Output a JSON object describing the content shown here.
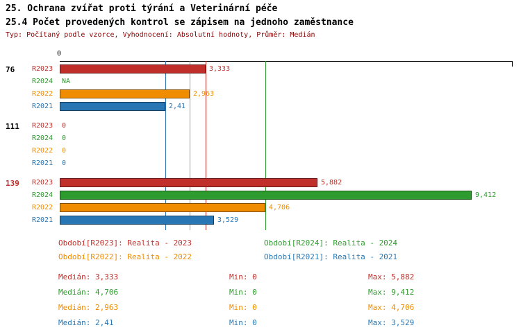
{
  "header": {
    "title1": "25. Ochrana zvířat proti týrání a Veterinární péče",
    "title2": "25.4 Počet provedených kontrol se zápisem na jednoho zaměstnance",
    "meta": "Typ: Počítaný podle vzorce, Vyhodnocení: Absolutní hodnoty, Průměr: Medián"
  },
  "colors": {
    "R2023": "#c02f2a",
    "R2024": "#2e9b2e",
    "R2022": "#f08c00",
    "R2021": "#2877b4",
    "meta_text": "#8b0000",
    "group_default": "#000000",
    "group_highlight": "#c02f2a",
    "axis": "#000000"
  },
  "chart_data": {
    "type": "bar",
    "orientation": "horizontal",
    "x_origin_label": "0",
    "xlim": [
      0,
      10.3
    ],
    "grid": "median-lines-per-series",
    "series_order": [
      "R2023",
      "R2024",
      "R2022",
      "R2021"
    ],
    "groups": [
      {
        "label": "76",
        "highlight": false,
        "rows": [
          {
            "series": "R2023",
            "value": 3.333,
            "display": "3,333"
          },
          {
            "series": "R2024",
            "value": null,
            "display": "NA"
          },
          {
            "series": "R2022",
            "value": 2.963,
            "display": "2,963"
          },
          {
            "series": "R2021",
            "value": 2.41,
            "display": "2,41"
          }
        ]
      },
      {
        "label": "111",
        "highlight": false,
        "rows": [
          {
            "series": "R2023",
            "value": 0,
            "display": "0"
          },
          {
            "series": "R2024",
            "value": 0,
            "display": "0"
          },
          {
            "series": "R2022",
            "value": 0,
            "display": "0"
          },
          {
            "series": "R2021",
            "value": 0,
            "display": "0"
          }
        ]
      },
      {
        "label": "139",
        "highlight": true,
        "rows": [
          {
            "series": "R2023",
            "value": 5.882,
            "display": "5,882"
          },
          {
            "series": "R2024",
            "value": 9.412,
            "display": "9,412"
          },
          {
            "series": "R2022",
            "value": 4.706,
            "display": "4,706"
          },
          {
            "series": "R2021",
            "value": 3.529,
            "display": "3,529"
          }
        ]
      }
    ],
    "median_lines": [
      {
        "series": "R2023",
        "value": 3.333
      },
      {
        "series": "R2024",
        "value": 4.706
      },
      {
        "series": "R2022",
        "value": 2.963
      },
      {
        "series": "R2021",
        "value": 2.41
      }
    ]
  },
  "legend": [
    {
      "series": "R2023",
      "text": "Období[R2023]: Realita - 2023"
    },
    {
      "series": "R2024",
      "text": "Období[R2024]: Realita - 2024"
    },
    {
      "series": "R2022",
      "text": "Období[R2022]: Realita - 2022"
    },
    {
      "series": "R2021",
      "text": "Období[R2021]: Realita - 2021"
    }
  ],
  "stats": [
    {
      "series": "R2023",
      "median": "Medián: 3,333",
      "min": "Min: 0",
      "max": "Max: 5,882"
    },
    {
      "series": "R2024",
      "median": "Medián: 4,706",
      "min": "Min: 0",
      "max": "Max: 9,412"
    },
    {
      "series": "R2022",
      "median": "Medián: 2,963",
      "min": "Min: 0",
      "max": "Max: 4,706"
    },
    {
      "series": "R2021",
      "median": "Medián: 2,41",
      "min": "Min: 0",
      "max": "Max: 3,529"
    }
  ]
}
